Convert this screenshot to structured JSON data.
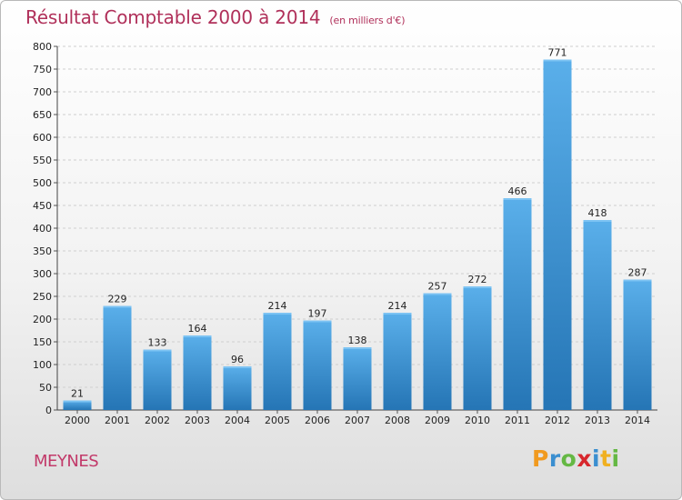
{
  "title": "Résultat Comptable 2000 à 2014",
  "subtitle": "(en milliers d'€)",
  "city": "MEYNES",
  "logo": {
    "letters": [
      "P",
      "r",
      "o",
      "x",
      "i",
      "t",
      "i"
    ],
    "colors": [
      "#f19a1f",
      "#3b8fd0",
      "#65b844",
      "#d7272d",
      "#3b8fd0",
      "#f0b020",
      "#65b844"
    ]
  },
  "colors": {
    "title": "#b0305a",
    "bar_top": "#5aafea",
    "bar_bottom": "#2575b5",
    "grid": "#cfcfcf"
  },
  "chart_data": {
    "type": "bar",
    "title": "Résultat Comptable 2000 à 2014",
    "subtitle": "(en milliers d'€)",
    "categories": [
      "2000",
      "2001",
      "2002",
      "2003",
      "2004",
      "2005",
      "2006",
      "2007",
      "2008",
      "2009",
      "2010",
      "2011",
      "2012",
      "2013",
      "2014"
    ],
    "values": [
      21,
      229,
      133,
      164,
      96,
      214,
      197,
      138,
      214,
      257,
      272,
      466,
      771,
      418,
      287
    ],
    "ylim": [
      0,
      800
    ],
    "yticks": [
      0,
      50,
      100,
      150,
      200,
      250,
      300,
      350,
      400,
      450,
      500,
      550,
      600,
      650,
      700,
      750,
      800
    ],
    "grid": true,
    "legend": "none"
  }
}
